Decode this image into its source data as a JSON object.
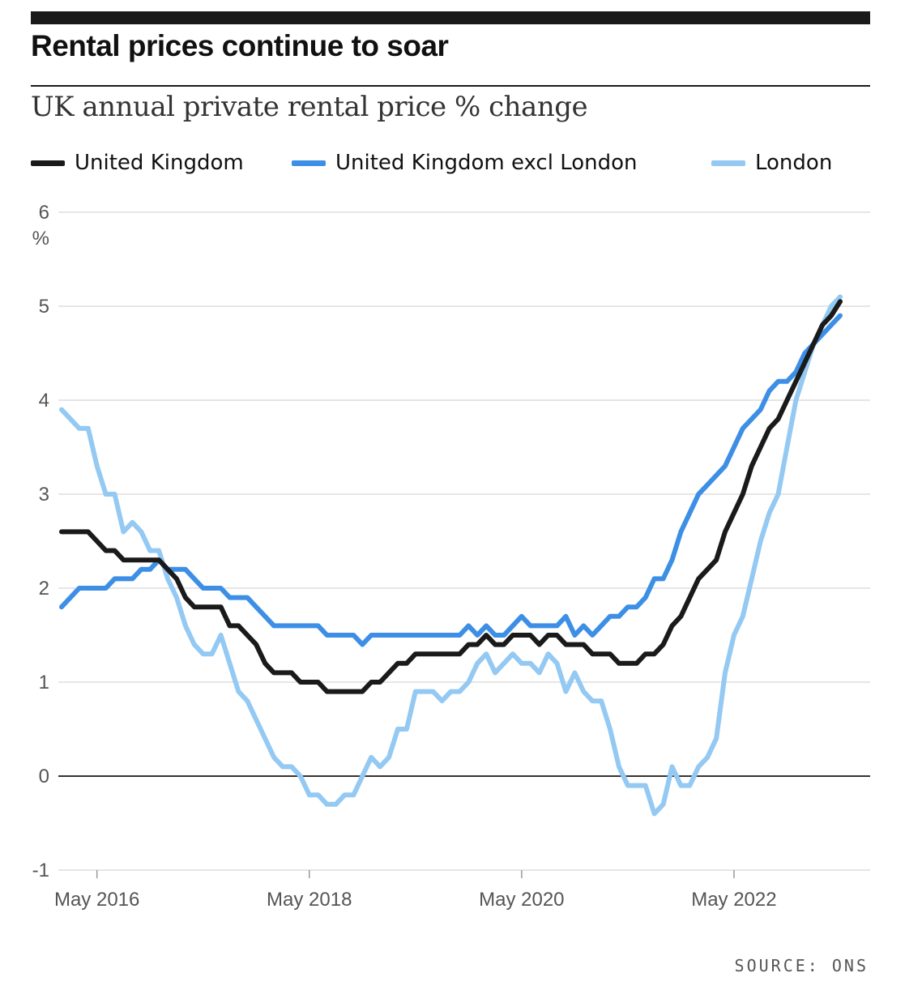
{
  "chart_data": {
    "type": "line",
    "title": "Rental prices continue to soar",
    "subtitle": "UK annual private rental price % change",
    "ylabel": "%",
    "source": "SOURCE: ONS",
    "x_start": "2016-01",
    "x_ticks": [
      {
        "label": "May 2016",
        "index": 4
      },
      {
        "label": "May 2018",
        "index": 28
      },
      {
        "label": "May 2020",
        "index": 52
      },
      {
        "label": "May 2022",
        "index": 76
      }
    ],
    "y_ticks": [
      "-1",
      "0",
      "1",
      "2",
      "3",
      "4",
      "5",
      "6"
    ],
    "ylim": [
      -1,
      6
    ],
    "legend_placement": "top",
    "series": [
      {
        "name": "United Kingdom",
        "color": "#1a1a1a",
        "values": [
          2.6,
          2.6,
          2.6,
          2.6,
          2.5,
          2.4,
          2.4,
          2.3,
          2.3,
          2.3,
          2.3,
          2.3,
          2.2,
          2.1,
          1.9,
          1.8,
          1.8,
          1.8,
          1.8,
          1.6,
          1.6,
          1.5,
          1.4,
          1.2,
          1.1,
          1.1,
          1.1,
          1.0,
          1.0,
          1.0,
          0.9,
          0.9,
          0.9,
          0.9,
          0.9,
          1.0,
          1.0,
          1.1,
          1.2,
          1.2,
          1.3,
          1.3,
          1.3,
          1.3,
          1.3,
          1.3,
          1.4,
          1.4,
          1.5,
          1.4,
          1.4,
          1.5,
          1.5,
          1.5,
          1.4,
          1.5,
          1.5,
          1.4,
          1.4,
          1.4,
          1.3,
          1.3,
          1.3,
          1.2,
          1.2,
          1.2,
          1.3,
          1.3,
          1.4,
          1.6,
          1.7,
          1.9,
          2.1,
          2.2,
          2.3,
          2.6,
          2.8,
          3.0,
          3.3,
          3.5,
          3.7,
          3.8,
          4.0,
          4.2,
          4.4,
          4.6,
          4.8,
          4.9,
          5.05
        ]
      },
      {
        "name": "United Kingdom excl London",
        "color": "#3d8fe6",
        "values": [
          1.8,
          1.9,
          2.0,
          2.0,
          2.0,
          2.0,
          2.1,
          2.1,
          2.1,
          2.2,
          2.2,
          2.3,
          2.2,
          2.2,
          2.2,
          2.1,
          2.0,
          2.0,
          2.0,
          1.9,
          1.9,
          1.9,
          1.8,
          1.7,
          1.6,
          1.6,
          1.6,
          1.6,
          1.6,
          1.6,
          1.5,
          1.5,
          1.5,
          1.5,
          1.4,
          1.5,
          1.5,
          1.5,
          1.5,
          1.5,
          1.5,
          1.5,
          1.5,
          1.5,
          1.5,
          1.5,
          1.6,
          1.5,
          1.6,
          1.5,
          1.5,
          1.6,
          1.7,
          1.6,
          1.6,
          1.6,
          1.6,
          1.7,
          1.5,
          1.6,
          1.5,
          1.6,
          1.7,
          1.7,
          1.8,
          1.8,
          1.9,
          2.1,
          2.1,
          2.3,
          2.6,
          2.8,
          3.0,
          3.1,
          3.2,
          3.3,
          3.5,
          3.7,
          3.8,
          3.9,
          4.1,
          4.2,
          4.2,
          4.3,
          4.5,
          4.6,
          4.7,
          4.8,
          4.9
        ]
      },
      {
        "name": "London",
        "color": "#93c9f2",
        "values": [
          3.9,
          3.8,
          3.7,
          3.7,
          3.3,
          3.0,
          3.0,
          2.6,
          2.7,
          2.6,
          2.4,
          2.4,
          2.1,
          1.9,
          1.6,
          1.4,
          1.3,
          1.3,
          1.5,
          1.2,
          0.9,
          0.8,
          0.6,
          0.4,
          0.2,
          0.1,
          0.1,
          0.0,
          -0.2,
          -0.2,
          -0.3,
          -0.3,
          -0.2,
          -0.2,
          0.0,
          0.2,
          0.1,
          0.2,
          0.5,
          0.5,
          0.9,
          0.9,
          0.9,
          0.8,
          0.9,
          0.9,
          1.0,
          1.2,
          1.3,
          1.1,
          1.2,
          1.3,
          1.2,
          1.2,
          1.1,
          1.3,
          1.2,
          0.9,
          1.1,
          0.9,
          0.8,
          0.8,
          0.5,
          0.1,
          -0.1,
          -0.1,
          -0.1,
          -0.4,
          -0.3,
          0.1,
          -0.1,
          -0.1,
          0.1,
          0.2,
          0.4,
          1.1,
          1.5,
          1.7,
          2.1,
          2.5,
          2.8,
          3.0,
          3.5,
          4.0,
          4.3,
          4.6,
          4.8,
          5.0,
          5.1
        ]
      }
    ]
  }
}
